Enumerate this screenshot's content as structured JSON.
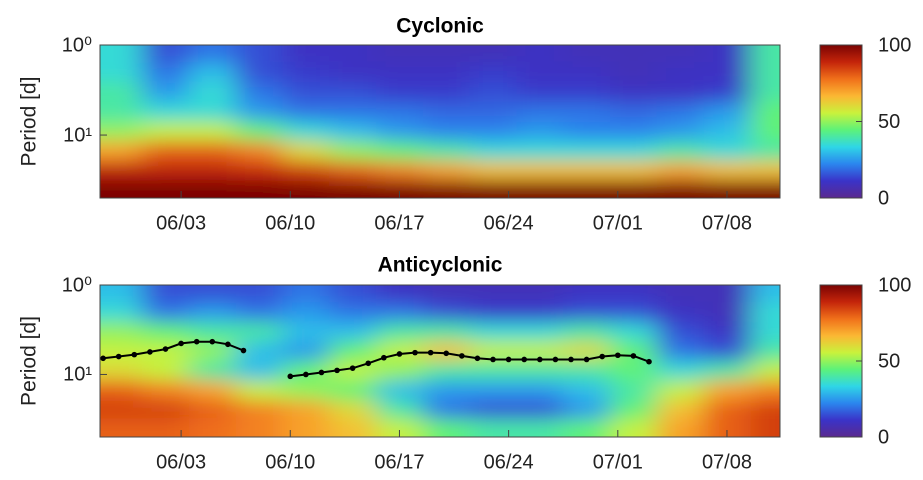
{
  "chart_data": [
    {
      "type": "heatmap",
      "title": "Cyclonic",
      "ylabel": "Period [d]",
      "yscale": "log",
      "xlim": [
        -5.2,
        38.4
      ],
      "ylim": [
        1,
        50
      ],
      "xticks": [
        {
          "value": 0,
          "label": "06/03"
        },
        {
          "value": 7,
          "label": "06/10"
        },
        {
          "value": 14,
          "label": "06/17"
        },
        {
          "value": 21,
          "label": "06/24"
        },
        {
          "value": 28,
          "label": "07/01"
        },
        {
          "value": 35,
          "label": "07/08"
        }
      ],
      "yticks": [
        {
          "value": 1,
          "label": "10⁰"
        },
        {
          "value": 10,
          "label": "10¹"
        }
      ],
      "zlim": [
        0,
        100
      ],
      "zticks": [
        0,
        50,
        100
      ],
      "colormap": [
        "#5b2a8f",
        "#3a33c8",
        "#2b86ee",
        "#2fd6e6",
        "#5cf27a",
        "#c9f23c",
        "#fbb733",
        "#f0701a",
        "#c4240a",
        "#7a0403"
      ],
      "x": [
        -4,
        -1,
        2,
        5,
        8,
        11,
        14,
        17,
        20,
        23,
        26,
        29,
        32,
        35,
        38
      ],
      "y": [
        1.2,
        2,
        3.3,
        5.5,
        9,
        15,
        25,
        40
      ],
      "z": [
        [
          35,
          15,
          20,
          15,
          10,
          10,
          8,
          8,
          8,
          10,
          8,
          8,
          8,
          10,
          40
        ],
        [
          35,
          20,
          30,
          15,
          12,
          10,
          10,
          10,
          12,
          10,
          10,
          8,
          10,
          10,
          40
        ],
        [
          40,
          25,
          35,
          20,
          15,
          15,
          12,
          12,
          15,
          12,
          12,
          10,
          10,
          12,
          40
        ],
        [
          40,
          35,
          35,
          25,
          20,
          20,
          20,
          18,
          18,
          20,
          20,
          18,
          20,
          25,
          45
        ],
        [
          50,
          55,
          55,
          45,
          35,
          30,
          25,
          22,
          22,
          25,
          22,
          22,
          25,
          30,
          45
        ],
        [
          70,
          80,
          80,
          75,
          60,
          50,
          45,
          40,
          35,
          35,
          35,
          35,
          40,
          35,
          40
        ],
        [
          90,
          90,
          90,
          88,
          85,
          80,
          75,
          70,
          65,
          65,
          65,
          65,
          70,
          65,
          65
        ],
        [
          100,
          100,
          100,
          100,
          100,
          100,
          100,
          100,
          100,
          100,
          100,
          100,
          100,
          100,
          100
        ]
      ]
    },
    {
      "type": "heatmap",
      "title": "Anticyclonic",
      "ylabel": "Period [d]",
      "yscale": "log",
      "xlim": [
        -5.2,
        38.4
      ],
      "ylim": [
        1,
        50
      ],
      "xticks": [
        {
          "value": 0,
          "label": "06/03"
        },
        {
          "value": 7,
          "label": "06/10"
        },
        {
          "value": 14,
          "label": "06/17"
        },
        {
          "value": 21,
          "label": "06/24"
        },
        {
          "value": 28,
          "label": "07/01"
        },
        {
          "value": 35,
          "label": "07/08"
        }
      ],
      "yticks": [
        {
          "value": 1,
          "label": "10⁰"
        },
        {
          "value": 10,
          "label": "10¹"
        }
      ],
      "zlim": [
        0,
        100
      ],
      "zticks": [
        0,
        50,
        100
      ],
      "colormap": [
        "#5b2a8f",
        "#3a33c8",
        "#2b86ee",
        "#2fd6e6",
        "#5cf27a",
        "#c9f23c",
        "#fbb733",
        "#f0701a",
        "#c4240a",
        "#7a0403"
      ],
      "x": [
        -4,
        -1,
        2,
        5,
        8,
        11,
        14,
        17,
        20,
        23,
        26,
        29,
        32,
        35,
        38
      ],
      "y": [
        1.2,
        2,
        3.3,
        5.5,
        9,
        15,
        25,
        40
      ],
      "z": [
        [
          30,
          15,
          15,
          15,
          20,
          15,
          10,
          8,
          8,
          8,
          10,
          10,
          8,
          8,
          30
        ],
        [
          35,
          20,
          25,
          20,
          25,
          20,
          20,
          15,
          12,
          12,
          15,
          15,
          10,
          8,
          35
        ],
        [
          50,
          45,
          40,
          40,
          30,
          30,
          40,
          40,
          35,
          35,
          40,
          35,
          15,
          10,
          35
        ],
        [
          55,
          55,
          50,
          30,
          25,
          45,
          55,
          65,
          55,
          55,
          60,
          45,
          20,
          15,
          40
        ],
        [
          60,
          55,
          40,
          30,
          45,
          55,
          50,
          40,
          40,
          40,
          40,
          45,
          35,
          40,
          55
        ],
        [
          80,
          75,
          70,
          55,
          50,
          45,
          30,
          25,
          25,
          25,
          30,
          40,
          55,
          70,
          75
        ],
        [
          85,
          85,
          80,
          75,
          70,
          60,
          40,
          20,
          15,
          15,
          25,
          45,
          65,
          80,
          85
        ],
        [
          80,
          80,
          78,
          75,
          70,
          65,
          55,
          45,
          40,
          40,
          45,
          55,
          70,
          80,
          85
        ]
      ],
      "series": [
        {
          "color": "#000000",
          "x": [
            -5,
            -4,
            -3,
            -2,
            -1,
            0,
            1,
            2,
            3,
            4,
            null,
            7,
            8,
            9,
            10,
            11,
            12,
            13,
            14,
            15,
            16,
            17,
            18,
            19,
            20,
            21,
            22,
            23,
            24,
            25,
            26,
            27,
            28,
            29,
            30
          ],
          "y": [
            6.6,
            6.3,
            6.0,
            5.6,
            5.2,
            4.5,
            4.3,
            4.3,
            4.6,
            5.4,
            null,
            10.5,
            10,
            9.5,
            9,
            8.5,
            7.5,
            6.5,
            5.9,
            5.7,
            5.7,
            5.8,
            6.2,
            6.6,
            6.8,
            6.8,
            6.8,
            6.8,
            6.8,
            6.8,
            6.8,
            6.3,
            6.1,
            6.2,
            7.2
          ]
        }
      ]
    }
  ]
}
